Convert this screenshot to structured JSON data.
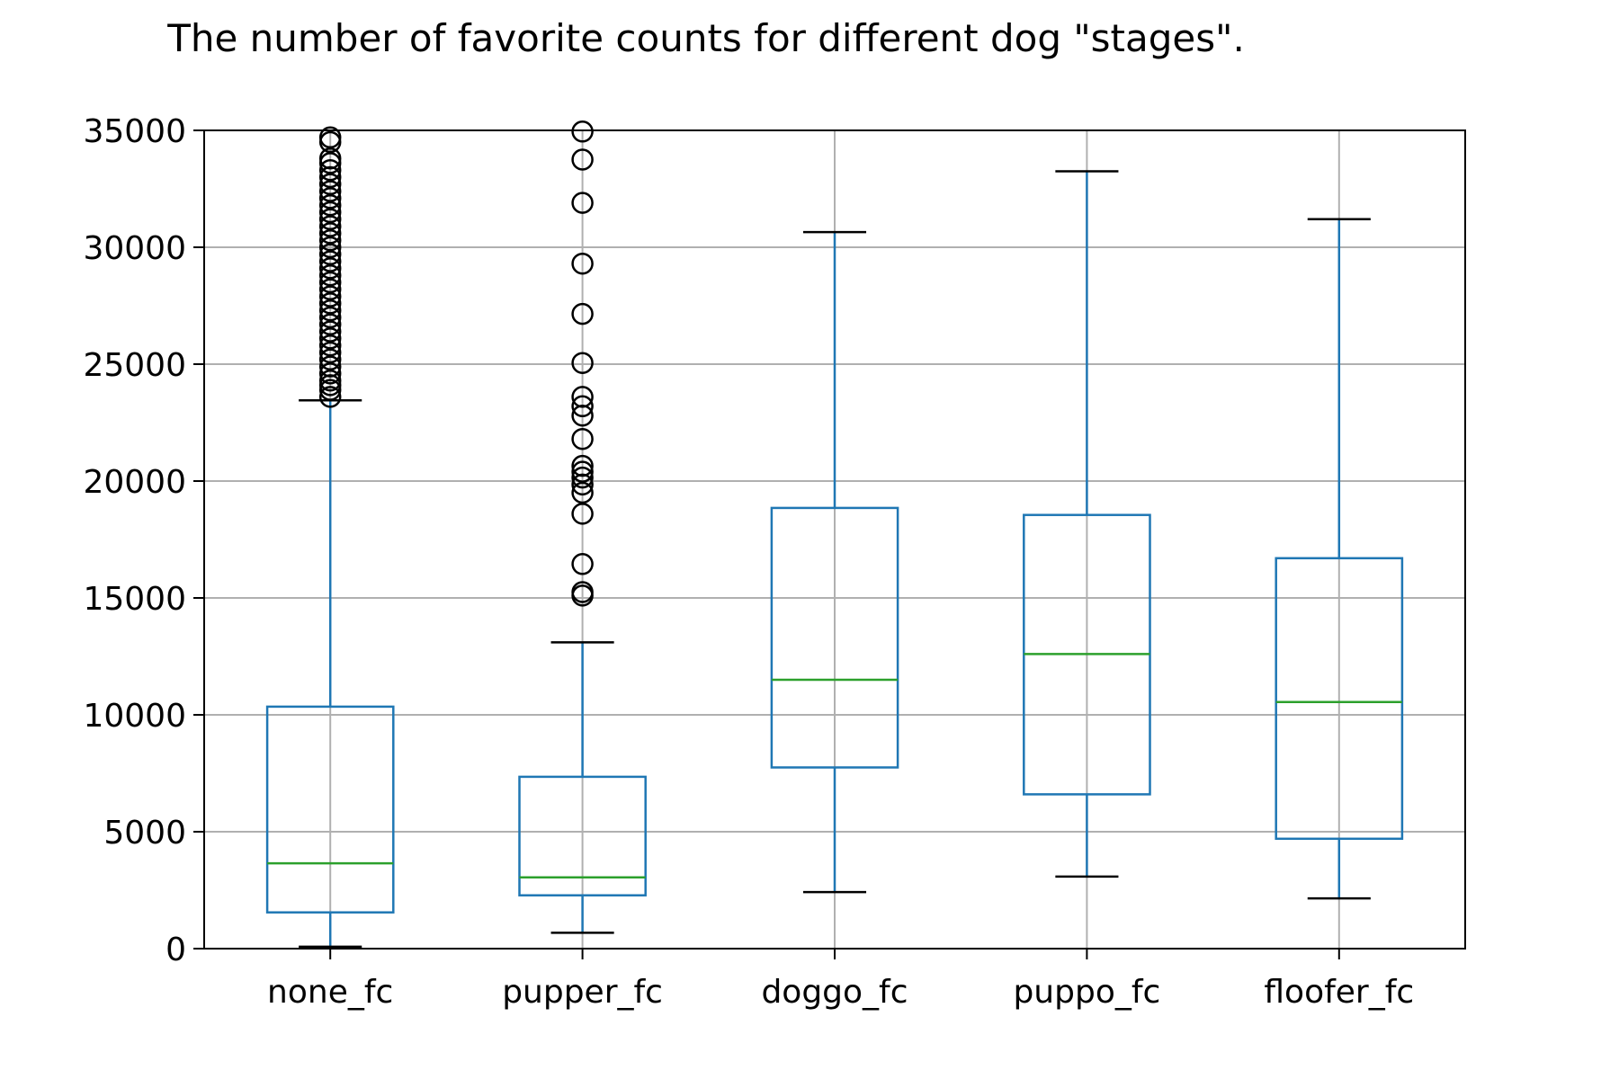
{
  "chart_data": {
    "type": "box",
    "title": "The number of favorite counts for different dog \"stages\".",
    "xlabel": "",
    "ylabel": "",
    "ylim": [
      0,
      35000
    ],
    "yticks": [
      0,
      5000,
      10000,
      15000,
      20000,
      25000,
      30000,
      35000
    ],
    "grid": true,
    "colors": {
      "box": "#1f77b4",
      "median": "#2ca02c",
      "whisker": "#1f77b4",
      "cap": "#000000",
      "outlier": "#000000",
      "grid": "#b0b0b0"
    },
    "categories": [
      "none_fc",
      "pupper_fc",
      "doggo_fc",
      "puppo_fc",
      "floofer_fc"
    ],
    "boxes": [
      {
        "name": "none_fc",
        "whisker_low": 80,
        "q1": 1550,
        "median": 3650,
        "q3": 10350,
        "whisker_high": 23450,
        "outliers": [
          23600,
          23900,
          24100,
          24300,
          24600,
          24900,
          25200,
          25500,
          25800,
          26100,
          26400,
          26700,
          27000,
          27300,
          27600,
          27900,
          28200,
          28500,
          28800,
          29100,
          29400,
          29700,
          30000,
          30300,
          30600,
          30900,
          31200,
          31500,
          31800,
          32100,
          32400,
          32700,
          33000,
          33300,
          33600,
          33800,
          34500,
          34700
        ]
      },
      {
        "name": "pupper_fc",
        "whisker_low": 680,
        "q1": 2280,
        "median": 3050,
        "q3": 7350,
        "whisker_high": 13100,
        "outliers": [
          15100,
          15250,
          16450,
          18600,
          19500,
          19850,
          20150,
          20400,
          20650,
          21800,
          22800,
          23200,
          23600,
          25050,
          27150,
          29300,
          31900,
          33750,
          34950
        ]
      },
      {
        "name": "doggo_fc",
        "whisker_low": 2420,
        "q1": 7750,
        "median": 11500,
        "q3": 18850,
        "whisker_high": 30650,
        "outliers": []
      },
      {
        "name": "puppo_fc",
        "whisker_low": 3080,
        "q1": 6600,
        "median": 12600,
        "q3": 18550,
        "whisker_high": 33250,
        "outliers": []
      },
      {
        "name": "floofer_fc",
        "whisker_low": 2150,
        "q1": 4700,
        "median": 10550,
        "q3": 16700,
        "whisker_high": 31200,
        "outliers": []
      }
    ]
  }
}
